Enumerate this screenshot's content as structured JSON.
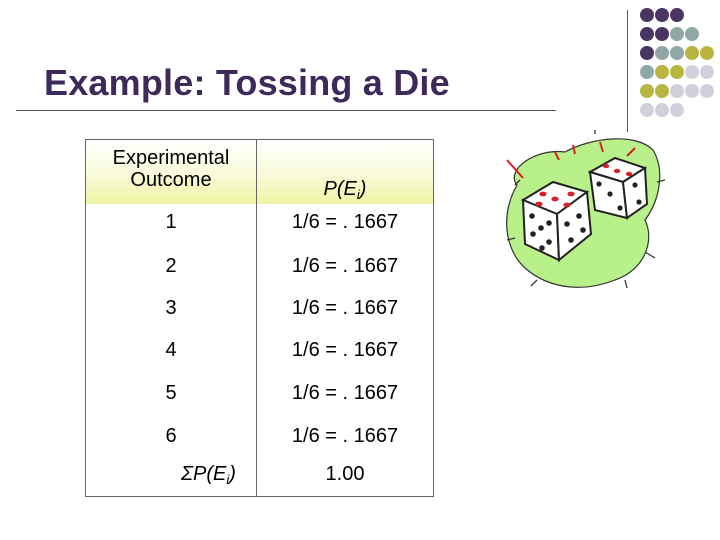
{
  "slide": {
    "title": "Example: Tossing a Die"
  },
  "table": {
    "header": {
      "col1_line1": "Experimental",
      "col1_line2": "Outcome",
      "col2_main": "P(E",
      "col2_sub": "i",
      "col2_close": ")"
    },
    "rows": [
      {
        "outcome": "1",
        "prob": "1/6 = . 1667"
      },
      {
        "outcome": "2",
        "prob": "1/6 = . 1667"
      },
      {
        "outcome": "3",
        "prob": "1/6 = . 1667"
      },
      {
        "outcome": "4",
        "prob": "1/6 = . 1667"
      },
      {
        "outcome": "5",
        "prob": "1/6 = . 1667"
      },
      {
        "outcome": "6",
        "prob": "1/6 = . 1667"
      }
    ],
    "sum": {
      "label_main": "ΣP(E",
      "label_sub": "i",
      "label_close": ")",
      "value": "1.00"
    }
  },
  "theme": {
    "title_color": "#3d2a5a",
    "dot_purple": "#4a3461",
    "dot_teal": "#8fa8a6",
    "dot_olive": "#b8b640",
    "dot_gray": "#cfd0dc",
    "header_tint": "#eef4a4",
    "clipart_green": "#b8f08a"
  },
  "decoration": {
    "dot_grid": [
      [
        "purple",
        "purple",
        "purple",
        null,
        null
      ],
      [
        "purple",
        "purple",
        "teal",
        "teal",
        null
      ],
      [
        "purple",
        "teal",
        "teal",
        "olive",
        "olive"
      ],
      [
        "teal",
        "olive",
        "olive",
        "gray",
        "gray"
      ],
      [
        "olive",
        "olive",
        "gray",
        "gray",
        "gray"
      ],
      [
        "gray",
        "gray",
        "gray",
        null,
        null
      ]
    ],
    "clipart_icon": "dice-clipart-icon"
  }
}
